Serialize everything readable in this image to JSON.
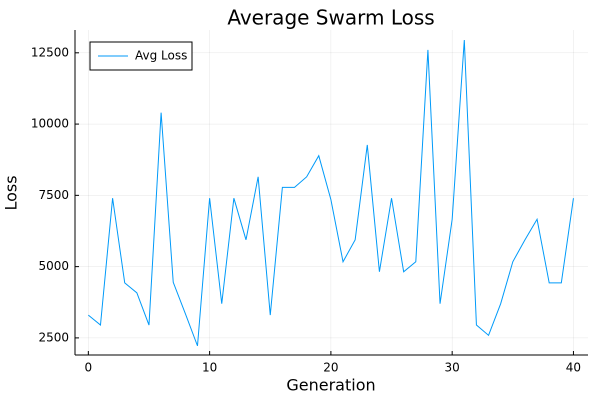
{
  "chart_data": {
    "type": "line",
    "title": "Average Swarm Loss",
    "x_label": "Generation",
    "y_label": "Loss",
    "x": [
      0,
      1,
      2,
      3,
      4,
      5,
      6,
      7,
      8,
      9,
      10,
      11,
      12,
      13,
      14,
      15,
      16,
      17,
      18,
      19,
      20,
      21,
      22,
      23,
      24,
      25,
      26,
      27,
      28,
      29,
      30,
      31,
      32,
      33,
      34,
      35,
      36,
      37,
      38,
      39,
      40
    ],
    "series": [
      {
        "name": "Avg Loss",
        "color": "#009af9",
        "values": [
          3300,
          2950,
          7400,
          4430,
          4080,
          2950,
          10400,
          4450,
          3350,
          2220,
          7400,
          3700,
          7400,
          5940,
          8150,
          3300,
          7780,
          7780,
          8150,
          8890,
          7350,
          5170,
          5940,
          9270,
          4820,
          7400,
          4820,
          5170,
          12600,
          3700,
          6660,
          12950,
          2950,
          2590,
          3700,
          5170,
          5940,
          6660,
          4430,
          4430,
          7400
        ]
      }
    ],
    "xlim": [
      -1.1,
      41.2
    ],
    "ylim": [
      1900,
      13300
    ],
    "xticks": [
      0,
      10,
      20,
      30,
      40
    ],
    "yticks": [
      2500,
      5000,
      7500,
      10000,
      12500
    ],
    "grid": true,
    "legend": "top-left"
  }
}
